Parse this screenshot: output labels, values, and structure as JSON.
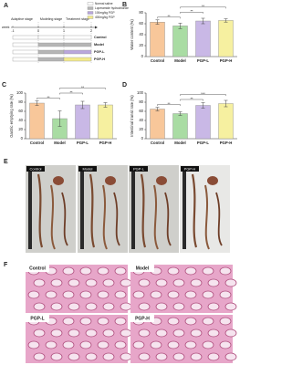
{
  "timeline": {
    "label": "A",
    "stages": [
      "Adaptive stage",
      "Modeling stage",
      "Treatment stage"
    ],
    "unit": "week",
    "weeks": [
      "-1",
      "0",
      "1",
      "2"
    ],
    "legend": [
      {
        "text": "Normal saline",
        "color": "#ffffff"
      },
      {
        "text": "Loperamide hydrochloride",
        "color": "#b5b5b5"
      },
      {
        "text": "100mg/kg PGP",
        "color": "#b9a6dc"
      },
      {
        "text": "400mg/kg PGP",
        "color": "#f3ea8c"
      }
    ],
    "groups": [
      {
        "name": "Control",
        "colors": [
          "#ffffff",
          "#ffffff"
        ]
      },
      {
        "name": "Model",
        "colors": [
          "#b5b5b5",
          "#b5b5b5"
        ]
      },
      {
        "name": "PGP-L",
        "colors": [
          "#b5b5b5",
          "#b9a6dc"
        ]
      },
      {
        "name": "PGP-H",
        "colors": [
          "#b5b5b5",
          "#f3ea8c"
        ]
      }
    ]
  },
  "chart_data": [
    {
      "type": "bar",
      "panel": "B",
      "ylabel": "Water content (%)",
      "categories": [
        "Control",
        "Model",
        "PGP-L",
        "PGP-H"
      ],
      "values": [
        63,
        56,
        65,
        66
      ],
      "errors": [
        4,
        5,
        5,
        3
      ],
      "colors": [
        "#f8c79a",
        "#a9dca3",
        "#c9b8e6",
        "#f6f0a0"
      ],
      "ylim": [
        0,
        80
      ],
      "yticks": [
        0,
        20,
        40,
        60,
        80
      ],
      "annotations": [
        {
          "text": "**",
          "between": [
            "Control",
            "Model"
          ]
        },
        {
          "text": "**",
          "between": [
            "Model",
            "PGP-L"
          ]
        },
        {
          "text": "**",
          "between": [
            "Model",
            "PGP-H"
          ]
        }
      ]
    },
    {
      "type": "bar",
      "panel": "C",
      "ylabel": "Gastric emptying rate (%)",
      "categories": [
        "Control",
        "Model",
        "PGP-L",
        "PGP-H"
      ],
      "values": [
        78,
        44,
        74,
        74
      ],
      "errors": [
        5,
        17,
        8,
        5
      ],
      "colors": [
        "#f8c79a",
        "#a9dca3",
        "#c9b8e6",
        "#f6f0a0"
      ],
      "ylim": [
        0,
        100
      ],
      "yticks": [
        0,
        20,
        40,
        60,
        80,
        100
      ],
      "annotations": [
        {
          "text": "**",
          "between": [
            "Control",
            "Model"
          ]
        },
        {
          "text": "**",
          "between": [
            "Model",
            "PGP-L"
          ]
        },
        {
          "text": "**",
          "between": [
            "Model",
            "PGP-H"
          ]
        }
      ]
    },
    {
      "type": "bar",
      "panel": "D",
      "ylabel": "Intestinal transit rate (%)",
      "categories": [
        "Control",
        "Model",
        "PGP-L",
        "PGP-H"
      ],
      "values": [
        65,
        55,
        73,
        77
      ],
      "errors": [
        4,
        4,
        6,
        7
      ],
      "colors": [
        "#f8c79a",
        "#a9dca3",
        "#c9b8e6",
        "#f6f0a0"
      ],
      "ylim": [
        0,
        100
      ],
      "yticks": [
        0,
        20,
        40,
        60,
        80,
        100
      ],
      "annotations": [
        {
          "text": "**",
          "between": [
            "Control",
            "Model"
          ]
        },
        {
          "text": "**",
          "between": [
            "Model",
            "PGP-L"
          ]
        },
        {
          "text": "***",
          "between": [
            "Model",
            "PGP-H"
          ]
        }
      ]
    }
  ],
  "photos": {
    "label": "E",
    "panels": [
      "Control",
      "Model",
      "PGP-L",
      "PGP-H"
    ]
  },
  "histology": {
    "label": "F",
    "panels": [
      "Control",
      "Model",
      "PGP-L",
      "PGP-H"
    ]
  }
}
